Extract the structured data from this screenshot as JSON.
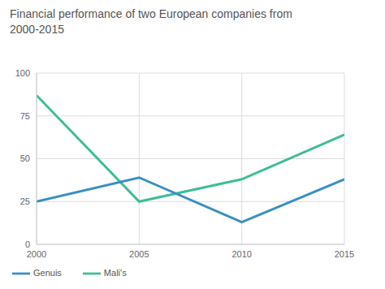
{
  "chart_data": {
    "type": "line",
    "title": "Financial performance of two European companies from 2000-2015",
    "x": [
      2000,
      2005,
      2010,
      2015
    ],
    "series": [
      {
        "name": "Mali's",
        "color": "#3dbd98",
        "values": [
          87,
          25,
          38,
          64
        ]
      },
      {
        "name": "Genuis",
        "color": "#3a8fc1",
        "values": [
          25,
          39,
          13,
          38
        ]
      }
    ],
    "xlim": [
      2000,
      2015
    ],
    "xticks": [
      2000,
      2005,
      2010,
      2015
    ],
    "ylim": [
      0,
      100
    ],
    "yticks": [
      0,
      25,
      50,
      75,
      100
    ],
    "grid": true,
    "legend": "lower left"
  }
}
